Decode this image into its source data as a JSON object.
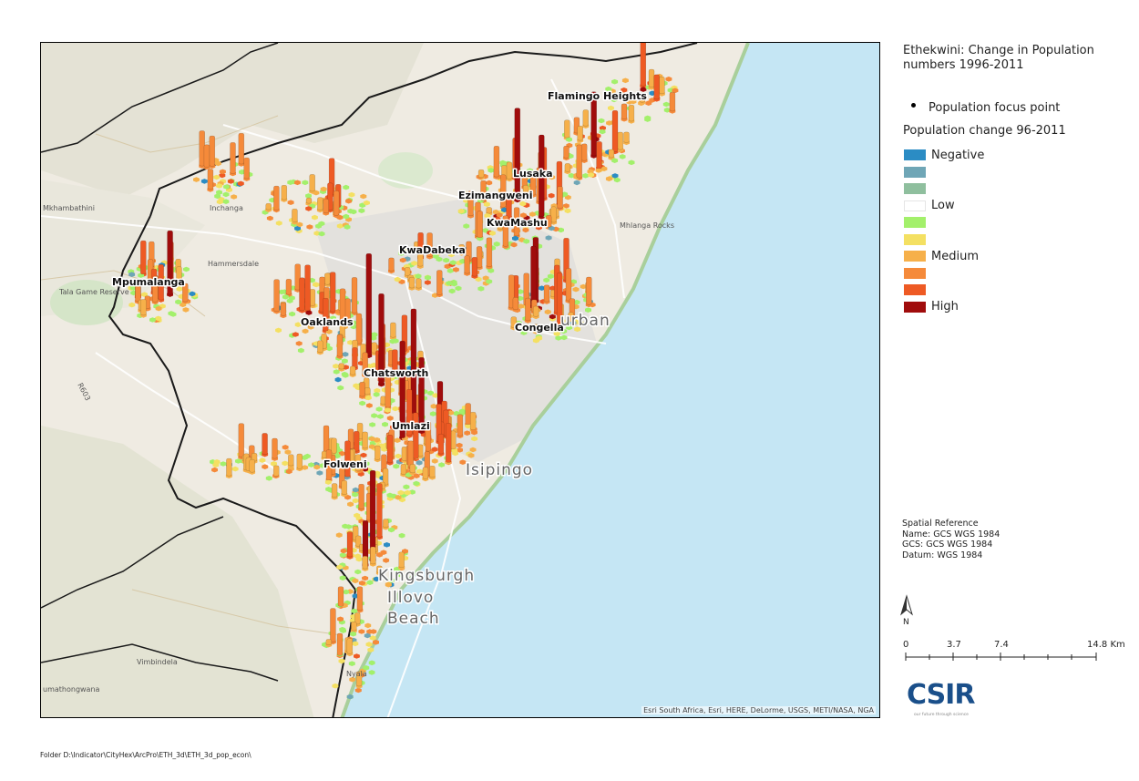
{
  "legend": {
    "title": "Ethekwini: Change in Population numbers 1996-2011",
    "focus_point_label": "Population focus point",
    "subtitle": "Population change 96-2011",
    "classes": [
      {
        "label": "Negative",
        "color": "#2b8cc4"
      },
      {
        "label": "",
        "color": "#6fa6b6"
      },
      {
        "label": "",
        "color": "#8fbf9e"
      },
      {
        "label": "Low",
        "color": "#ffffff"
      },
      {
        "label": "",
        "color": "#a3f06b"
      },
      {
        "label": "",
        "color": "#f4e062"
      },
      {
        "label": "Medium",
        "color": "#f6b04a"
      },
      {
        "label": "",
        "color": "#f58a3a"
      },
      {
        "label": "",
        "color": "#ee5a24"
      },
      {
        "label": "High",
        "color": "#a00c0c"
      }
    ]
  },
  "spatial_reference": {
    "heading": "Spatial Reference",
    "name": "Name: GCS WGS 1984",
    "gcs": "GCS: GCS WGS 1984",
    "datum": "Datum: WGS 1984"
  },
  "north_arrow": {
    "label": "N"
  },
  "scale_bar": {
    "labels": [
      "0",
      "3.7",
      "7.4",
      "14.8 Km"
    ]
  },
  "logo": {
    "text": "CSIR",
    "tagline": "our future through science"
  },
  "map": {
    "attribution": "Esri South Africa, Esri, HERE, DeLorme, USGS, METI/NASA, NGA",
    "place_labels": [
      "Flamingo Heights",
      "Lusaka",
      "Ezimangweni",
      "KwaMashu",
      "KwaDabeka",
      "Mpumalanga",
      "Oaklands",
      "Congella",
      "Chatsworth",
      "Umlazi",
      "Folweni"
    ],
    "basemap_labels": [
      "urban",
      "Isipingo",
      "Kingsburgh",
      "Illovo",
      "Beach",
      "R603"
    ],
    "minor_labels": [
      "Mkhambathini",
      "Tala Game Reserve",
      "Vimbindela",
      "umathongwana",
      "Hammersdale",
      "Mhlanga Rocks",
      "Inchanga",
      "Nyala"
    ]
  },
  "colors": {
    "ocean": "#c5e6f4",
    "land": "#eeeae1",
    "boundary": "#1a1a1a",
    "coast": "#a9cf9b"
  },
  "footer": {
    "path": "Folder D:\\Indicator\\CityHex\\ArcPro\\ETH_3d\\ETH_3d_pop_econ\\"
  }
}
